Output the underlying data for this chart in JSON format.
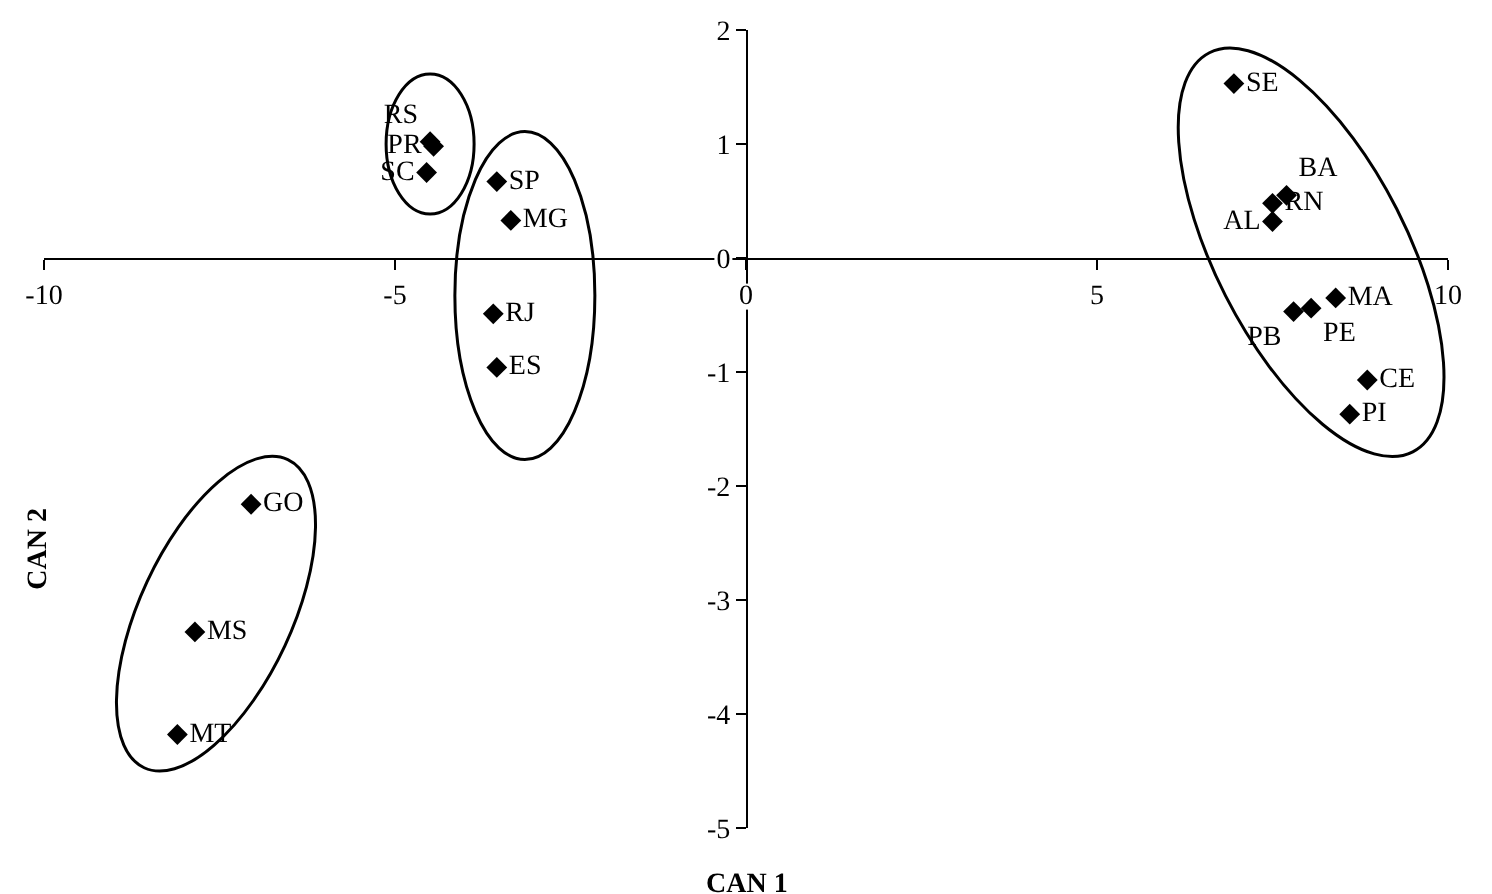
{
  "chart_data": {
    "type": "scatter",
    "xlabel": "CAN 1",
    "ylabel": "CAN 2",
    "xlim": [
      -10,
      10
    ],
    "xticks": [
      -10,
      -5,
      0,
      5,
      10
    ],
    "ylim": [
      -5,
      2
    ],
    "yticks": [
      -5,
      -4,
      -3,
      -2,
      -1,
      0,
      1,
      2
    ],
    "grid": false,
    "legend": false,
    "marker": "diamond",
    "series": [
      {
        "name": "RS",
        "color": "#000000",
        "x": [
          -4.5
        ],
        "values": [
          1.02
        ]
      },
      {
        "name": "PR",
        "color": "#000000",
        "x": [
          -4.45
        ],
        "values": [
          0.98
        ]
      },
      {
        "name": "SC",
        "color": "#000000",
        "x": [
          -4.55
        ],
        "values": [
          0.75
        ]
      },
      {
        "name": "SP",
        "color": "#000000",
        "x": [
          -3.55
        ],
        "values": [
          0.67
        ]
      },
      {
        "name": "MG",
        "color": "#000000",
        "x": [
          -3.35
        ],
        "values": [
          0.33
        ]
      },
      {
        "name": "RJ",
        "color": "#000000",
        "x": [
          -3.6
        ],
        "values": [
          -0.49
        ]
      },
      {
        "name": "ES",
        "color": "#000000",
        "x": [
          -3.55
        ],
        "values": [
          -0.96
        ]
      },
      {
        "name": "SE",
        "color": "#000000",
        "x": [
          6.95
        ],
        "values": [
          1.53
        ]
      },
      {
        "name": "BA",
        "color": "#000000",
        "x": [
          7.7
        ],
        "values": [
          0.55
        ]
      },
      {
        "name": "RN",
        "color": "#000000",
        "x": [
          7.5
        ],
        "values": [
          0.48
        ]
      },
      {
        "name": "AL",
        "color": "#000000",
        "x": [
          7.5
        ],
        "values": [
          0.32
        ]
      },
      {
        "name": "MA",
        "color": "#000000",
        "x": [
          8.4
        ],
        "values": [
          -0.35
        ]
      },
      {
        "name": "PE",
        "color": "#000000",
        "x": [
          8.05
        ],
        "values": [
          -0.44
        ]
      },
      {
        "name": "PB",
        "color": "#000000",
        "x": [
          7.8
        ],
        "values": [
          -0.47
        ]
      },
      {
        "name": "CE",
        "color": "#000000",
        "x": [
          8.85
        ],
        "values": [
          -1.07
        ]
      },
      {
        "name": "PI",
        "color": "#000000",
        "x": [
          8.6
        ],
        "values": [
          -1.37
        ]
      },
      {
        "name": "GO",
        "color": "#000000",
        "x": [
          -7.05
        ],
        "values": [
          -2.16
        ]
      },
      {
        "name": "MS",
        "color": "#000000",
        "x": [
          -7.85
        ],
        "values": [
          -3.28
        ]
      },
      {
        "name": "MT",
        "color": "#000000",
        "x": [
          -8.1
        ],
        "values": [
          -4.18
        ]
      }
    ]
  }
}
